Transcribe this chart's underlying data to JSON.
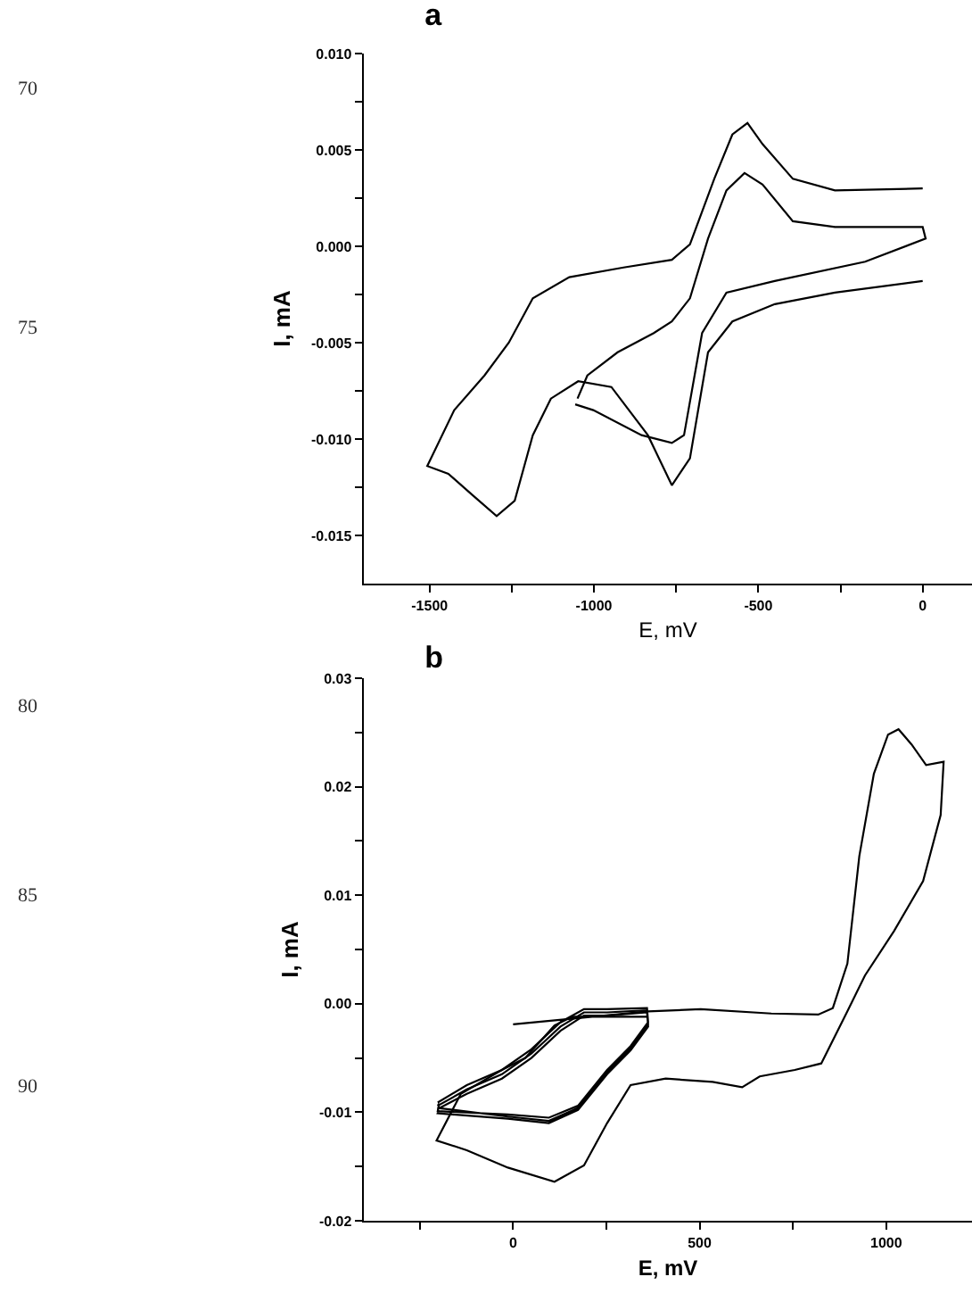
{
  "chart_data": [
    {
      "type": "line",
      "title": "a",
      "xlabel": "E, mV",
      "ylabel": "I, mA",
      "grid": false,
      "marker": "none",
      "line_style": "solid",
      "annotations": [
        "70",
        "75"
      ],
      "xlim": [
        -1700,
        150
      ],
      "ylim": [
        -0.0175,
        0.01
      ],
      "xticks": [
        -1500,
        {
          "value": -1250,
          "label": null
        },
        -1000,
        {
          "value": -750,
          "label": null
        },
        -500,
        {
          "value": -250,
          "label": null
        },
        0
      ],
      "yticks": [
        {
          "value": -0.015,
          "label": "-0.015"
        },
        {
          "value": -0.0125,
          "label": null
        },
        {
          "value": -0.01,
          "label": "-0.010"
        },
        {
          "value": -0.0075,
          "label": null
        },
        {
          "value": -0.005,
          "label": "-0.005"
        },
        {
          "value": -0.0025,
          "label": null
        },
        {
          "value": 0,
          "label": "0.000"
        },
        {
          "value": 0.0025,
          "label": null
        },
        {
          "value": 0.005,
          "label": "0.005"
        },
        {
          "value": 0.0075,
          "label": null
        },
        {
          "value": 0.01,
          "label": "0.010"
        }
      ],
      "series": [
        {
          "color": "#000000",
          "x": [
            0,
            -267,
            -395,
            -487,
            -533,
            -579,
            -634,
            -708,
            -763,
            -910,
            -1075,
            -1186,
            -1259,
            -1333,
            -1425,
            -1507,
            -1443,
            -1370,
            -1296,
            -1241,
            -1186,
            -1131,
            -1048,
            -947,
            -836,
            -763,
            -708,
            -653,
            -579,
            -450,
            -267,
            0
          ],
          "values": [
            0.003,
            0.0029,
            0.0035,
            0.0053,
            0.0064,
            0.0058,
            0.0035,
            0.0001,
            -0.0007,
            -0.0011,
            -0.0016,
            -0.0027,
            -0.005,
            -0.0067,
            -0.0085,
            -0.0114,
            -0.0118,
            -0.0129,
            -0.014,
            -0.0132,
            -0.0098,
            -0.0079,
            -0.007,
            -0.0073,
            -0.0098,
            -0.0124,
            -0.011,
            -0.0055,
            -0.0039,
            -0.003,
            -0.0024,
            -0.0018
          ]
        },
        {
          "color": "#000000",
          "x": [
            -1057,
            -1002,
            -855,
            -763,
            -726,
            -671,
            -597,
            -450,
            -175,
            9,
            0,
            -267,
            -395,
            -487,
            -542,
            -597,
            -653,
            -708,
            -763,
            -818,
            -928,
            -1020,
            -1050
          ],
          "values": [
            -0.0082,
            -0.0085,
            -0.0098,
            -0.0102,
            -0.0098,
            -0.0045,
            -0.0024,
            -0.0018,
            -0.0008,
            0.0004,
            0.001,
            0.001,
            0.0013,
            0.0032,
            0.0038,
            0.0029,
            0.0004,
            -0.0027,
            -0.0039,
            -0.0045,
            -0.0055,
            -0.0067,
            -0.0079
          ]
        }
      ]
    },
    {
      "type": "line",
      "title": "b",
      "xlabel": "E, mV",
      "ylabel": "I, mA",
      "grid": false,
      "marker": "none",
      "line_style": "solid",
      "annotations": [
        "80",
        "85",
        "90"
      ],
      "xlim": [
        -400,
        1230
      ],
      "ylim": [
        -0.02,
        0.03
      ],
      "xticks": [
        {
          "value": -250,
          "label": null
        },
        0,
        {
          "value": 250,
          "label": null
        },
        500,
        {
          "value": 750,
          "label": null
        },
        1000
      ],
      "yticks": [
        {
          "value": -0.02,
          "label": "-0.02"
        },
        {
          "value": -0.015,
          "label": null
        },
        {
          "value": -0.01,
          "label": "-0.01"
        },
        {
          "value": -0.005,
          "label": null
        },
        {
          "value": 0,
          "label": "0.00"
        },
        {
          "value": 0.005,
          "label": null
        },
        {
          "value": 0.01,
          "label": "0.01"
        },
        {
          "value": 0.015,
          "label": null
        },
        {
          "value": 0.02,
          "label": "0.02"
        },
        {
          "value": 0.025,
          "label": null
        },
        {
          "value": 0.03,
          "label": "0.03"
        }
      ],
      "series": [
        {
          "color": "#000000",
          "x": [
            0,
            362,
            503,
            692,
            818,
            857,
            896,
            928,
            967,
            1005,
            1033,
            1068,
            1107,
            1154,
            1146,
            1099,
            1021,
            943,
            896,
            826,
            755,
            661,
            614,
            535,
            409,
            315,
            252,
            190,
            111,
            -14,
            -124,
            -205,
            -140,
            -30,
            33,
            111,
            158,
            221,
            362
          ],
          "values": [
            -0.0019,
            -0.0007,
            -0.0005,
            -0.0009,
            -0.001,
            -0.0004,
            0.0037,
            0.0136,
            0.0212,
            0.0248,
            0.0253,
            0.0239,
            0.022,
            0.0223,
            0.0174,
            0.0113,
            0.0067,
            0.0026,
            -0.0007,
            -0.0055,
            -0.0061,
            -0.0067,
            -0.0077,
            -0.0072,
            -0.0069,
            -0.0075,
            -0.011,
            -0.0149,
            -0.0164,
            -0.0151,
            -0.0135,
            -0.0126,
            -0.0083,
            -0.0061,
            -0.005,
            -0.002,
            -0.0012,
            -0.0012,
            -0.0012
          ]
        },
        {
          "color": "#000000",
          "x": [
            -202,
            -124,
            -30,
            49,
            127,
            190,
            252,
            359,
            362,
            315,
            252,
            174,
            96,
            -14,
            -202,
            -198,
            -202,
            -124,
            -30,
            49,
            127,
            190,
            252,
            359,
            362,
            315,
            252,
            174,
            96,
            -14,
            -202,
            -198,
            -202,
            -124,
            -30,
            49,
            127,
            190,
            252,
            359,
            362,
            315,
            252,
            174,
            96,
            -14,
            -202,
            -198
          ],
          "values": [
            -0.0091,
            -0.0075,
            -0.0061,
            -0.0042,
            -0.0017,
            -0.0005,
            -0.0005,
            -0.0004,
            -0.0017,
            -0.0039,
            -0.0061,
            -0.0094,
            -0.0105,
            -0.0102,
            -0.0099,
            -0.0092,
            -0.0094,
            -0.0079,
            -0.0065,
            -0.0046,
            -0.0021,
            -0.0008,
            -0.0008,
            -0.0006,
            -0.0019,
            -0.0041,
            -0.0063,
            -0.0096,
            -0.0108,
            -0.0104,
            -0.0096,
            -0.0095,
            -0.0097,
            -0.0083,
            -0.0069,
            -0.005,
            -0.0025,
            -0.0011,
            -0.0011,
            -0.0008,
            -0.0021,
            -0.0043,
            -0.0065,
            -0.0098,
            -0.011,
            -0.0106,
            -0.0101,
            -0.0098
          ]
        }
      ]
    }
  ]
}
